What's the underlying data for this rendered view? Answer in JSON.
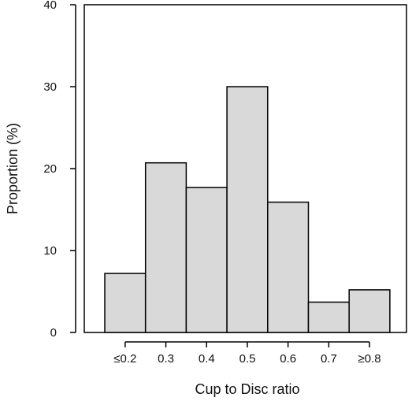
{
  "chart_data": {
    "type": "bar",
    "title": "",
    "xlabel": "Cup to Disc ratio",
    "ylabel": "Proportion (%)",
    "categories": [
      "≤0.2",
      "0.3",
      "0.4",
      "0.5",
      "0.6",
      "0.7",
      "≥0.8"
    ],
    "values": [
      7.2,
      20.7,
      17.7,
      30.0,
      15.9,
      3.7,
      5.2
    ],
    "ylim": [
      0,
      40
    ],
    "yticks": [
      "0",
      "10",
      "20",
      "30",
      "40"
    ],
    "grid": false,
    "legend": "none",
    "bar_color": "#d9d9d9",
    "bar_edge_color": "#000000"
  }
}
